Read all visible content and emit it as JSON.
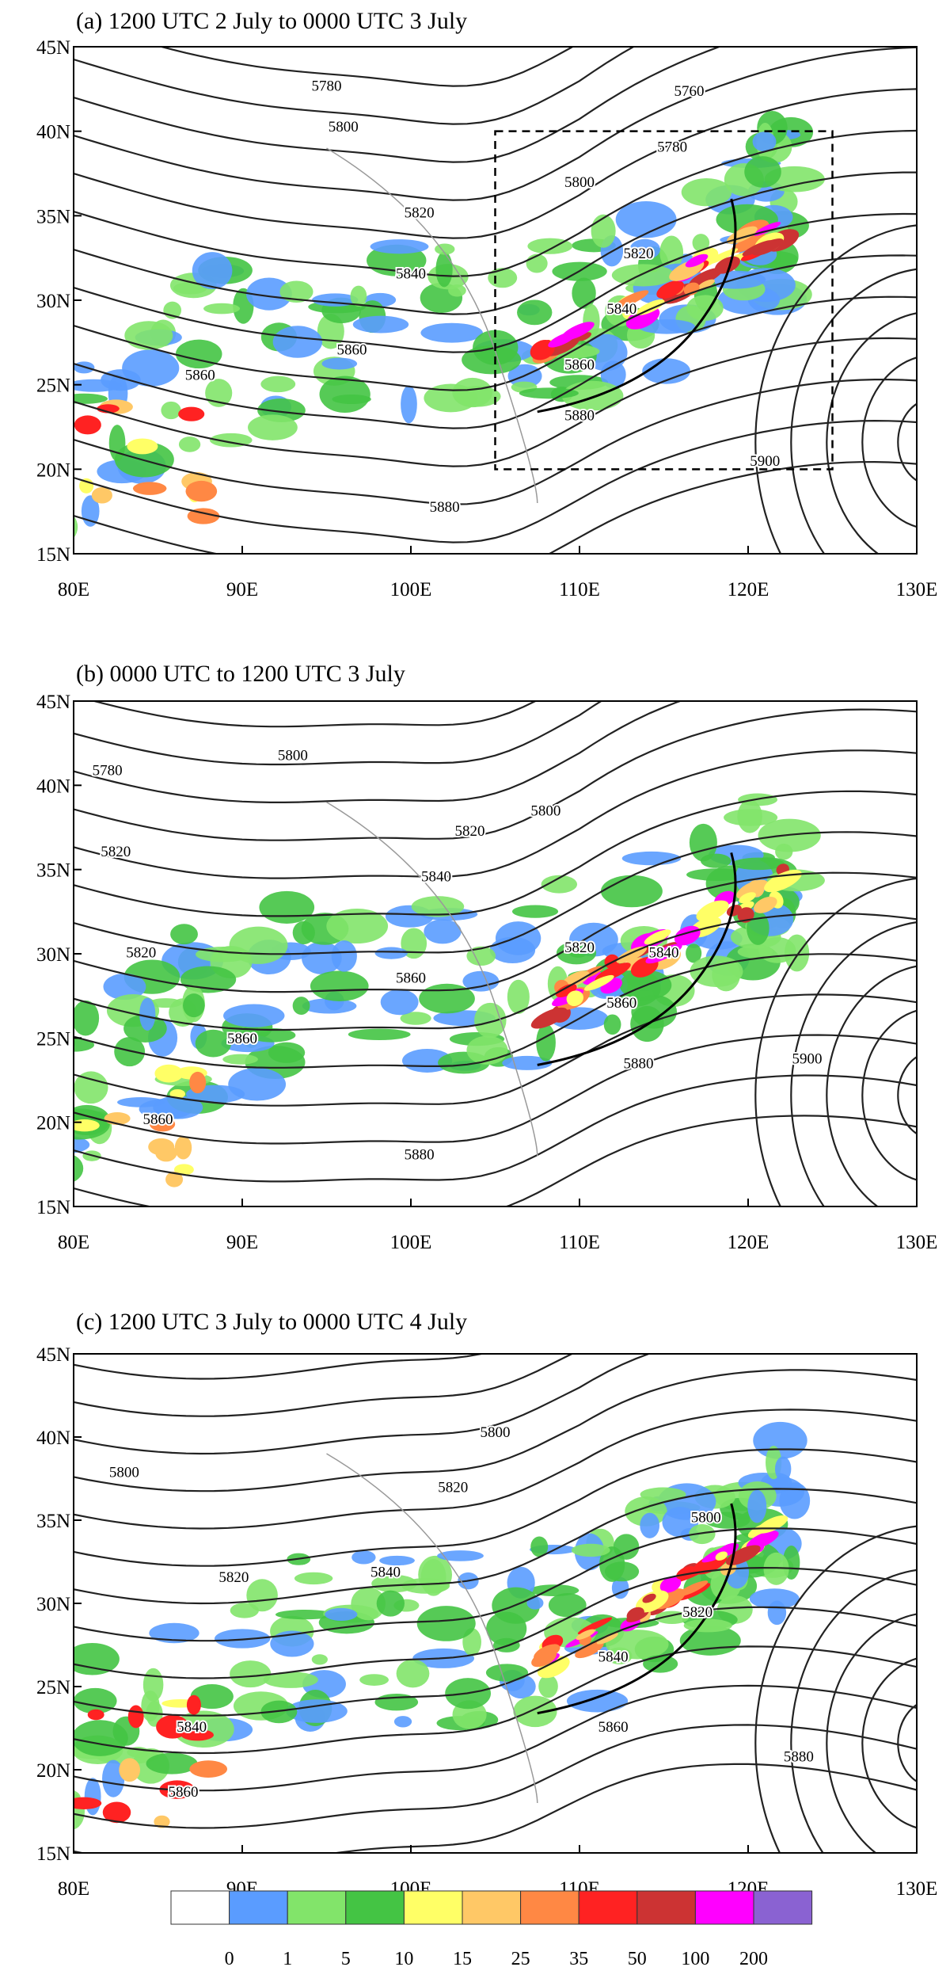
{
  "panels": [
    {
      "title": "(a) 1200 UTC 2 July to 0000 UTC 3 July",
      "lon_ticks": [
        "80E",
        "90E",
        "100E",
        "110E",
        "120E",
        "130E"
      ],
      "lat_ticks": [
        "15N",
        "20N",
        "25N",
        "30N",
        "35N",
        "40N",
        "45N"
      ],
      "contour_labels": [
        "5780",
        "5760",
        "5800",
        "5780",
        "5800",
        "5820",
        "5820",
        "5840",
        "5840",
        "5860",
        "5860",
        "5880",
        "5900",
        "5880",
        "5860"
      ]
    },
    {
      "title": "(b) 0000 UTC to 1200 UTC 3 July",
      "lon_ticks": [
        "80E",
        "90E",
        "100E",
        "110E",
        "120E",
        "130E"
      ],
      "lat_ticks": [
        "15N",
        "20N",
        "25N",
        "30N",
        "35N",
        "40N",
        "45N"
      ],
      "contour_labels": [
        "5780",
        "5800",
        "5800",
        "5820",
        "5820",
        "5840",
        "5820",
        "5860",
        "5820",
        "5840",
        "5860",
        "5880",
        "5900",
        "5860",
        "5880",
        "5860"
      ]
    },
    {
      "title": "(c) 1200 UTC 3 July to 0000 UTC 4 July",
      "lon_ticks": [
        "80E",
        "90E",
        "100E",
        "110E",
        "120E",
        "130E"
      ],
      "lat_ticks": [
        "15N",
        "20N",
        "25N",
        "30N",
        "35N",
        "40N",
        "45N"
      ],
      "contour_labels": [
        "5800",
        "5800",
        "5820",
        "5820",
        "5840",
        "5800",
        "5820",
        "5840",
        "5860",
        "5880",
        "5860",
        "5840"
      ]
    }
  ],
  "colorbar": {
    "colors": [
      "#ffffff",
      "#5a9cff",
      "#82e46a",
      "#44c444",
      "#ffff66",
      "#ffc866",
      "#ff8844",
      "#ff2222",
      "#cc3333",
      "#ff00ff",
      "#8a62d2"
    ],
    "labels": [
      "0",
      "1",
      "5",
      "10",
      "15",
      "25",
      "35",
      "50",
      "100",
      "200"
    ]
  }
}
